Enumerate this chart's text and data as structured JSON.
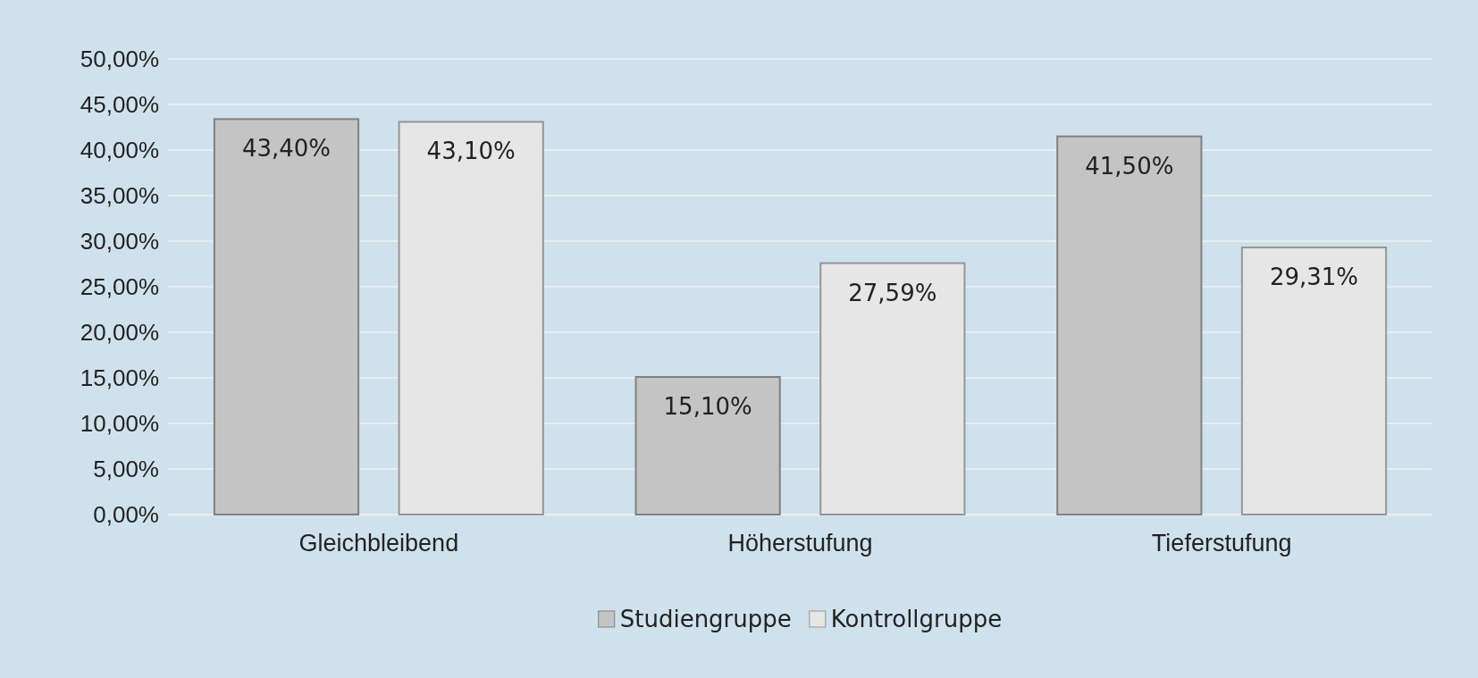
{
  "chart_data": {
    "type": "bar",
    "categories": [
      "Gleichbleibend",
      "Höherstufung",
      "Tieferstufung"
    ],
    "series": [
      {
        "name": "Studiengruppe",
        "color": "#c4c4c4",
        "values": [
          43.4,
          15.1,
          41.5
        ],
        "value_labels": [
          "43,40%",
          "15,10%",
          "41,50%"
        ]
      },
      {
        "name": "Kontrollgruppe",
        "color": "#e6e6e6",
        "values": [
          43.1,
          27.59,
          29.31
        ],
        "value_labels": [
          "43,10%",
          "27,59%",
          "29,31%"
        ]
      }
    ],
    "ylim": [
      0,
      50
    ],
    "yticks": [
      {
        "value": 0,
        "label": "0,00%"
      },
      {
        "value": 5,
        "label": "5,00%"
      },
      {
        "value": 10,
        "label": "10,00%"
      },
      {
        "value": 15,
        "label": "15,00%"
      },
      {
        "value": 20,
        "label": "20,00%"
      },
      {
        "value": 25,
        "label": "25,00%"
      },
      {
        "value": 30,
        "label": "30,00%"
      },
      {
        "value": 35,
        "label": "35,00%"
      },
      {
        "value": 40,
        "label": "40,00%"
      },
      {
        "value": 45,
        "label": "45,00%"
      },
      {
        "value": 50,
        "label": "50,00%"
      }
    ],
    "grid": "y",
    "legend": "bottom"
  }
}
